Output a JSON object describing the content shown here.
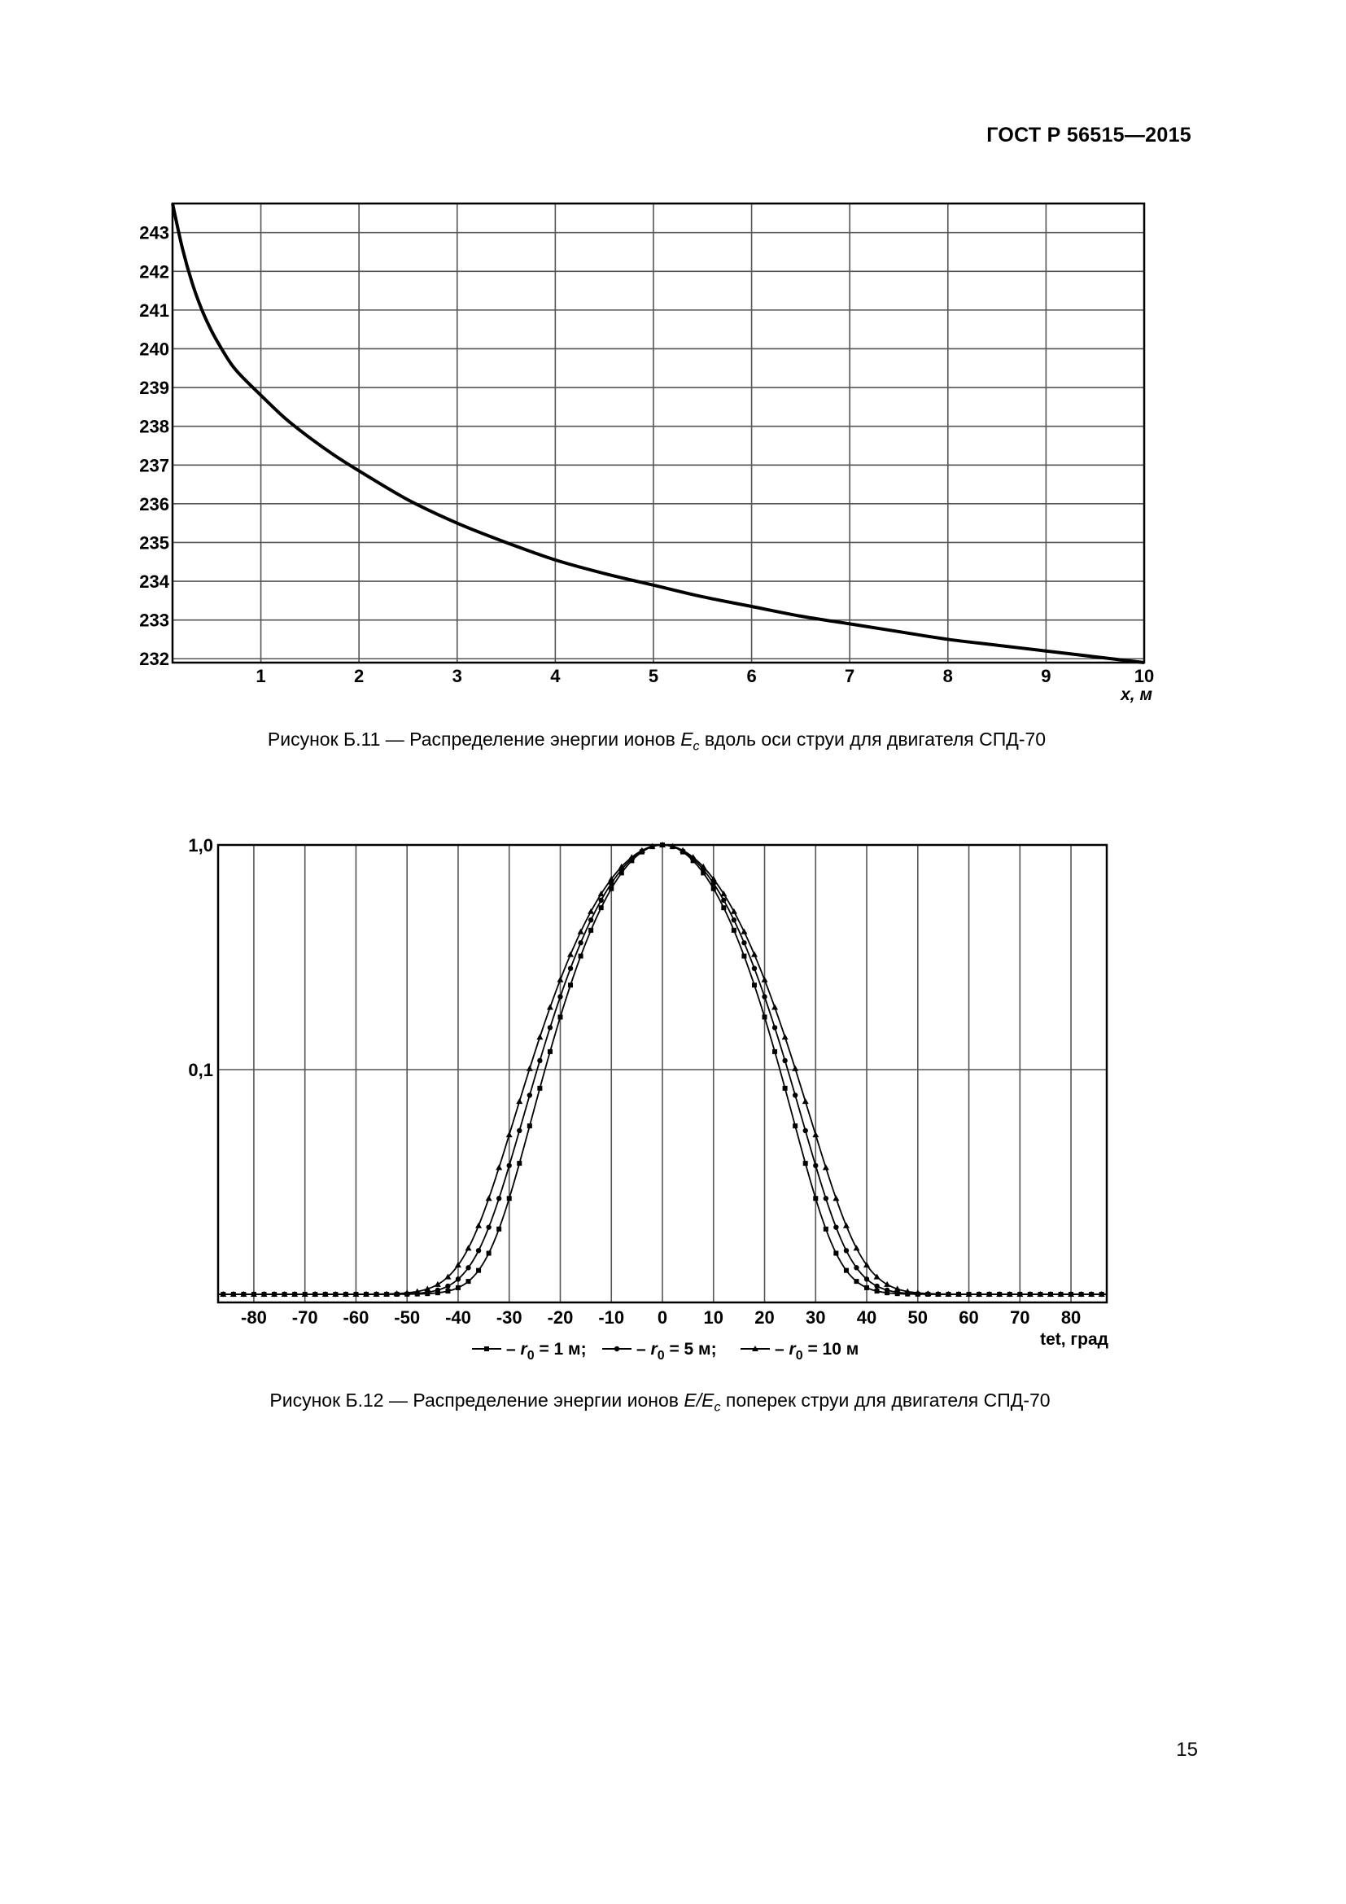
{
  "header": {
    "doc_id": "ГОСТ Р 56515—2015"
  },
  "page_number": "15",
  "figures": [
    {
      "caption_prefix": "Рисунок Б.11 — Распределение энергии ионов ",
      "caption_var": "E",
      "caption_sub": "c",
      "caption_suffix": " вдоль оси струи для двигателя СПД-70"
    },
    {
      "caption_prefix": "Рисунок Б.12 — Распределение энергии ионов ",
      "caption_var": "E/E",
      "caption_sub": "c",
      "caption_suffix": " поперек струи для двигателя СПД-70"
    }
  ],
  "chart_data": [
    {
      "type": "line",
      "xlabel": "x, м",
      "ylabel": "",
      "xlim": [
        0.1,
        10
      ],
      "ylim": [
        231.9,
        243.75
      ],
      "x_ticks": [
        1,
        2,
        3,
        4,
        5,
        6,
        7,
        8,
        9,
        10
      ],
      "y_ticks": [
        232,
        233,
        234,
        235,
        236,
        237,
        238,
        239,
        240,
        241,
        242,
        243
      ],
      "grid": true,
      "series": [
        {
          "x": [
            0.1,
            0.2,
            0.3,
            0.4,
            0.5,
            0.6,
            0.7,
            0.8,
            1.0,
            1.25,
            1.5,
            1.75,
            2.0,
            2.5,
            3.0,
            3.5,
            4.0,
            4.5,
            5.0,
            5.5,
            6.0,
            6.5,
            7.0,
            7.5,
            8.0,
            8.5,
            9.0,
            9.5,
            10.0
          ],
          "y": [
            243.75,
            242.6,
            241.7,
            241.0,
            240.45,
            240.0,
            239.6,
            239.3,
            238.8,
            238.2,
            237.7,
            237.25,
            236.85,
            236.1,
            235.5,
            235.0,
            234.55,
            234.2,
            233.9,
            233.6,
            233.35,
            233.1,
            232.9,
            232.7,
            232.5,
            232.35,
            232.2,
            232.05,
            231.9
          ]
        }
      ]
    },
    {
      "type": "line",
      "xlabel": "tet, град",
      "ylabel": "",
      "xlim": [
        -87,
        87
      ],
      "y_scale": "log",
      "ylim": [
        0.01,
        1.0
      ],
      "y_tick_labels": [
        "0,1",
        "1,0"
      ],
      "y_ticks": [
        0.1,
        1.0
      ],
      "x_ticks": [
        -80,
        -70,
        -60,
        -50,
        -40,
        -30,
        -20,
        -10,
        0,
        10,
        20,
        30,
        40,
        50,
        60,
        70,
        80
      ],
      "grid": true,
      "legend_placement": "bottom",
      "series": [
        {
          "name": "r0 = 1 м",
          "marker": "square",
          "sigma": 10.5
        },
        {
          "name": "r0 = 5 м",
          "marker": "circle",
          "sigma": 11.2
        },
        {
          "name": "r0 = 10 м",
          "marker": "triangle",
          "sigma": 11.9
        }
      ],
      "baseline": 0.01
    }
  ]
}
